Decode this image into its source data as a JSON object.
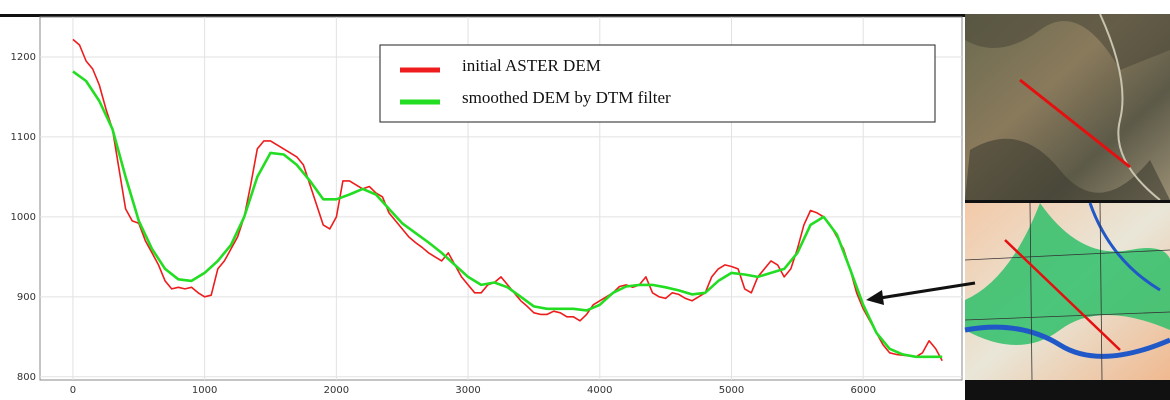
{
  "chart_data": {
    "type": "line",
    "xlim": [
      -250,
      6750
    ],
    "ylim": [
      796,
      1250
    ],
    "xticks": [
      0,
      1000,
      2000,
      3000,
      4000,
      5000,
      6000
    ],
    "yticks": [
      800,
      900,
      1000,
      1100,
      1200
    ],
    "grid": true,
    "legend": "top-right",
    "series": [
      {
        "name": "initial ASTER DEM",
        "color": "#ee1c1c",
        "x": [
          0,
          50,
          100,
          150,
          200,
          250,
          300,
          350,
          400,
          450,
          500,
          550,
          600,
          650,
          700,
          750,
          800,
          850,
          900,
          950,
          1000,
          1050,
          1100,
          1150,
          1200,
          1250,
          1300,
          1350,
          1400,
          1450,
          1500,
          1550,
          1600,
          1650,
          1700,
          1750,
          1800,
          1850,
          1900,
          1950,
          2000,
          2050,
          2100,
          2150,
          2200,
          2250,
          2300,
          2350,
          2400,
          2450,
          2500,
          2550,
          2600,
          2650,
          2700,
          2750,
          2800,
          2850,
          2900,
          2950,
          3000,
          3050,
          3100,
          3150,
          3200,
          3250,
          3300,
          3350,
          3400,
          3450,
          3500,
          3550,
          3600,
          3650,
          3700,
          3750,
          3800,
          3850,
          3900,
          3950,
          4000,
          4050,
          4100,
          4150,
          4200,
          4250,
          4300,
          4350,
          4400,
          4450,
          4500,
          4550,
          4600,
          4650,
          4700,
          4750,
          4800,
          4850,
          4900,
          4950,
          5000,
          5050,
          5100,
          5150,
          5200,
          5250,
          5300,
          5350,
          5400,
          5450,
          5500,
          5550,
          5600,
          5650,
          5700,
          5750,
          5800,
          5850,
          5900,
          5950,
          6000,
          6050,
          6100,
          6150,
          6200,
          6250,
          6300,
          6350,
          6400,
          6450,
          6500,
          6550,
          6600
        ],
        "values": [
          1222,
          1215,
          1195,
          1185,
          1165,
          1135,
          1110,
          1060,
          1010,
          995,
          992,
          970,
          955,
          940,
          920,
          910,
          912,
          910,
          912,
          905,
          900,
          902,
          935,
          945,
          960,
          975,
          1000,
          1040,
          1085,
          1095,
          1095,
          1090,
          1085,
          1080,
          1075,
          1065,
          1040,
          1015,
          990,
          985,
          1000,
          1045,
          1045,
          1040,
          1035,
          1038,
          1030,
          1025,
          1005,
          995,
          985,
          975,
          968,
          962,
          955,
          950,
          945,
          955,
          940,
          925,
          915,
          905,
          905,
          915,
          918,
          925,
          915,
          905,
          895,
          888,
          880,
          878,
          878,
          882,
          880,
          875,
          875,
          870,
          878,
          890,
          895,
          900,
          905,
          913,
          915,
          912,
          915,
          925,
          905,
          900,
          898,
          905,
          903,
          898,
          895,
          900,
          905,
          925,
          935,
          940,
          938,
          935,
          910,
          905,
          925,
          935,
          945,
          940,
          925,
          935,
          960,
          990,
          1008,
          1005,
          1000,
          990,
          975,
          960,
          935,
          905,
          885,
          870,
          855,
          840,
          830,
          828,
          827,
          826,
          825,
          830,
          845,
          835,
          820
        ]
      },
      {
        "name": "smoothed DEM by DTM filter",
        "color": "#22dd22",
        "x": [
          0,
          100,
          200,
          300,
          400,
          500,
          600,
          700,
          800,
          900,
          1000,
          1100,
          1200,
          1300,
          1400,
          1500,
          1600,
          1700,
          1800,
          1900,
          2000,
          2100,
          2200,
          2300,
          2400,
          2500,
          2600,
          2700,
          2800,
          2900,
          3000,
          3100,
          3200,
          3300,
          3400,
          3500,
          3600,
          3700,
          3800,
          3900,
          4000,
          4100,
          4200,
          4300,
          4400,
          4500,
          4600,
          4700,
          4800,
          4900,
          5000,
          5100,
          5200,
          5300,
          5400,
          5500,
          5600,
          5700,
          5800,
          5900,
          6000,
          6100,
          6200,
          6300,
          6400,
          6500,
          6600
        ],
        "values": [
          1182,
          1170,
          1145,
          1110,
          1050,
          995,
          960,
          935,
          922,
          920,
          930,
          945,
          965,
          1000,
          1050,
          1080,
          1078,
          1065,
          1045,
          1022,
          1022,
          1028,
          1035,
          1028,
          1010,
          992,
          980,
          968,
          955,
          940,
          925,
          915,
          918,
          912,
          900,
          888,
          885,
          885,
          885,
          883,
          890,
          905,
          913,
          915,
          915,
          912,
          908,
          903,
          905,
          920,
          930,
          928,
          925,
          930,
          935,
          955,
          990,
          1000,
          978,
          935,
          890,
          855,
          835,
          828,
          825,
          825,
          825
        ]
      }
    ]
  }
}
